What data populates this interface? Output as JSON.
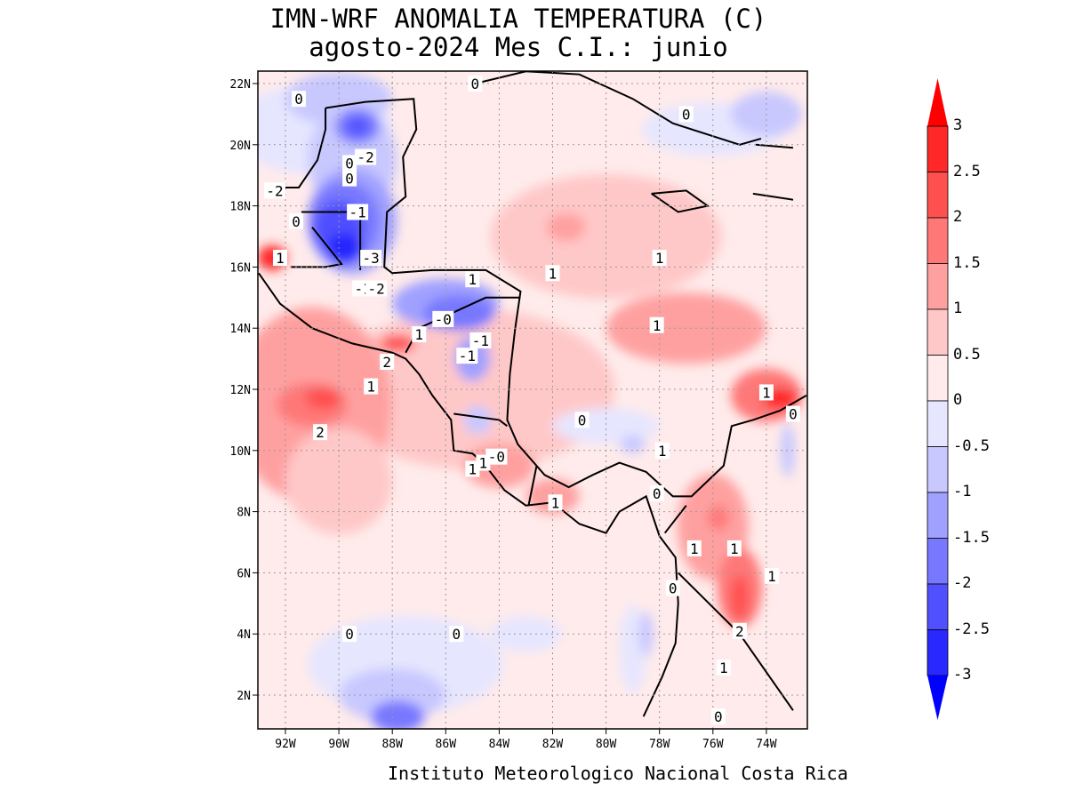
{
  "title": {
    "line1": "IMN-WRF  ANOMALIA TEMPERATURA (C)",
    "line2": "agosto-2024 Mes C.I.: junio"
  },
  "credit": "Instituto Meteorologico Nacional Costa Rica",
  "map": {
    "variable": "temperature anomaly",
    "units": "C",
    "lat_ticks": [
      "22N",
      "20N",
      "18N",
      "16N",
      "14N",
      "12N",
      "10N",
      "8N",
      "6N",
      "4N",
      "2N"
    ],
    "lon_ticks": [
      "92W",
      "90W",
      "88W",
      "86W",
      "84W",
      "82W",
      "80W",
      "78W",
      "76W",
      "74W"
    ],
    "contour_labels": [
      "0",
      "-2",
      "0",
      "-2",
      "0",
      "-1",
      "-3",
      "-1",
      "-2",
      "1",
      "1",
      "0",
      "1",
      "-0",
      "-1",
      "2",
      "1",
      "0",
      "0",
      "1",
      "1",
      "0",
      "1",
      "1",
      "-0",
      "1",
      "1",
      "0",
      "1",
      "2",
      "1",
      "2",
      "0",
      "0",
      "1",
      "1",
      "1",
      "1",
      "0",
      "-1",
      "0",
      "0"
    ]
  },
  "colorbar": {
    "labels": [
      "3",
      "2.5",
      "2",
      "1.5",
      "1",
      "0.5",
      "0",
      "-0.5",
      "-1",
      "-1.5",
      "-2",
      "-2.5",
      "-3"
    ],
    "colors": [
      "#ff0000",
      "#ff2828",
      "#ff5050",
      "#ff7878",
      "#ffa0a0",
      "#ffc8c8",
      "#ffebeb",
      "#e6e6ff",
      "#c8c8ff",
      "#a0a0ff",
      "#7878ff",
      "#5050ff",
      "#2828ff",
      "#0000ff"
    ]
  }
}
